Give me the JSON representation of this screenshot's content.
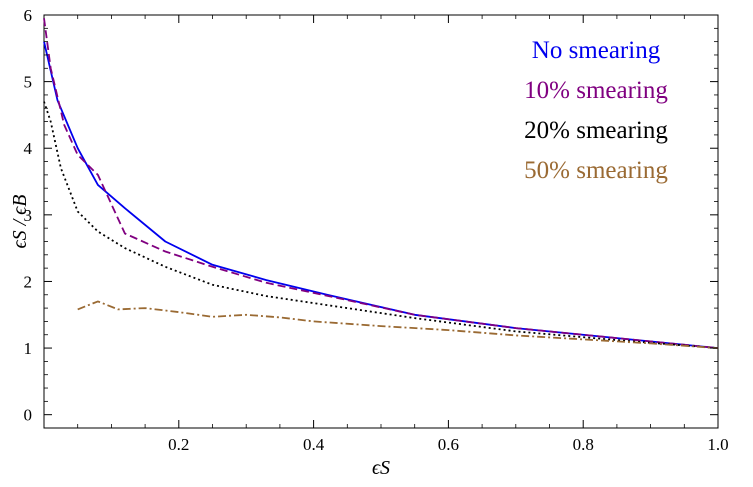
{
  "chart_data": {
    "type": "line",
    "xlabel": "ϵS",
    "ylabel": "ϵS / ϵB",
    "xlim": [
      0.0,
      1.0
    ],
    "ylim": [
      -0.2,
      6.0
    ],
    "xticks": [
      0.2,
      0.4,
      0.6,
      0.8,
      1.0
    ],
    "xtick_labels": [
      "0.2",
      "0.4",
      "0.6",
      "0.8",
      "1.0"
    ],
    "yticks": [
      0,
      1,
      2,
      3,
      4,
      5,
      6
    ],
    "ytick_labels": [
      "0",
      "1",
      "2",
      "3",
      "4",
      "5",
      "6"
    ],
    "grid": false,
    "legend_position": "top-right",
    "series": [
      {
        "name": "No smearing",
        "color": "#0000ee",
        "dash": "solid",
        "x": [
          0.0,
          0.02,
          0.05,
          0.08,
          0.12,
          0.18,
          0.25,
          0.33,
          0.42,
          0.55,
          0.7,
          0.85,
          1.0
        ],
        "y": [
          5.6,
          4.72,
          4.0,
          3.45,
          3.1,
          2.6,
          2.25,
          2.02,
          1.8,
          1.5,
          1.3,
          1.15,
          1.0
        ]
      },
      {
        "name": "10% smearing",
        "color": "#800080",
        "dash": "dashed",
        "x": [
          0.0,
          0.01,
          0.03,
          0.05,
          0.08,
          0.12,
          0.18,
          0.25,
          0.33,
          0.45,
          0.55,
          0.7,
          0.85,
          1.0
        ],
        "y": [
          5.95,
          5.2,
          4.35,
          3.9,
          3.6,
          2.72,
          2.45,
          2.22,
          1.98,
          1.72,
          1.5,
          1.3,
          1.15,
          1.0
        ]
      },
      {
        "name": "20% smearing",
        "color": "#000000",
        "dash": "dotted",
        "x": [
          0.0,
          0.01,
          0.025,
          0.05,
          0.08,
          0.12,
          0.18,
          0.25,
          0.33,
          0.45,
          0.55,
          0.7,
          0.85,
          1.0
        ],
        "y": [
          4.7,
          4.4,
          3.7,
          3.05,
          2.75,
          2.5,
          2.22,
          1.95,
          1.78,
          1.6,
          1.45,
          1.25,
          1.12,
          1.0
        ]
      },
      {
        "name": "50% smearing",
        "color": "#9a6a33",
        "dash": "dashdot",
        "x": [
          0.05,
          0.08,
          0.11,
          0.15,
          0.2,
          0.25,
          0.3,
          0.35,
          0.4,
          0.5,
          0.6,
          0.7,
          0.8,
          0.9,
          1.0
        ],
        "y": [
          1.58,
          1.7,
          1.58,
          1.6,
          1.54,
          1.47,
          1.5,
          1.46,
          1.4,
          1.33,
          1.27,
          1.19,
          1.13,
          1.07,
          1.0
        ]
      }
    ]
  }
}
